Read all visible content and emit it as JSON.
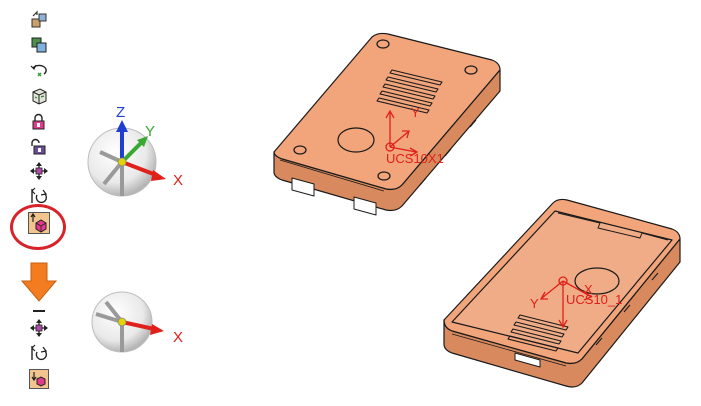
{
  "toolbar": {
    "items": [
      {
        "icon": "snap-to-face-icon"
      },
      {
        "icon": "align-parts-icon"
      },
      {
        "icon": "rotate-about-axis-icon"
      },
      {
        "icon": "view-cube-icon"
      },
      {
        "icon": "lock-orientation-icon"
      },
      {
        "icon": "unlock-orientation-icon"
      },
      {
        "icon": "move-triad-icon"
      },
      {
        "icon": "reset-rotation-icon"
      },
      {
        "icon": "place-on-ucs-icon"
      }
    ],
    "bottom_items": [
      {
        "icon": "minus-icon"
      },
      {
        "icon": "move-triad-icon"
      },
      {
        "icon": "reset-rotation-icon"
      },
      {
        "icon": "placed-part-icon"
      }
    ]
  },
  "triad_top": {
    "z": "Z",
    "y": "Y",
    "x": "X"
  },
  "triad_bottom": {
    "x": "X"
  },
  "parts": {
    "lid": {
      "ucs_label": "UCS10X1",
      "y_label": "Y"
    },
    "base": {
      "ucs_label": "UCS10_1",
      "x_label": "X",
      "y_label": "Y"
    }
  },
  "colors": {
    "part_fill": "#f2a47a",
    "part_dark": "#d88a5e",
    "edge": "#1a1a1a",
    "ucs": "#e0201a",
    "highlight": "#d8232a",
    "arrow": "#f47c20",
    "axis_x": "#e0201a",
    "axis_y": "#3aa832",
    "axis_z": "#1f3fd0"
  }
}
